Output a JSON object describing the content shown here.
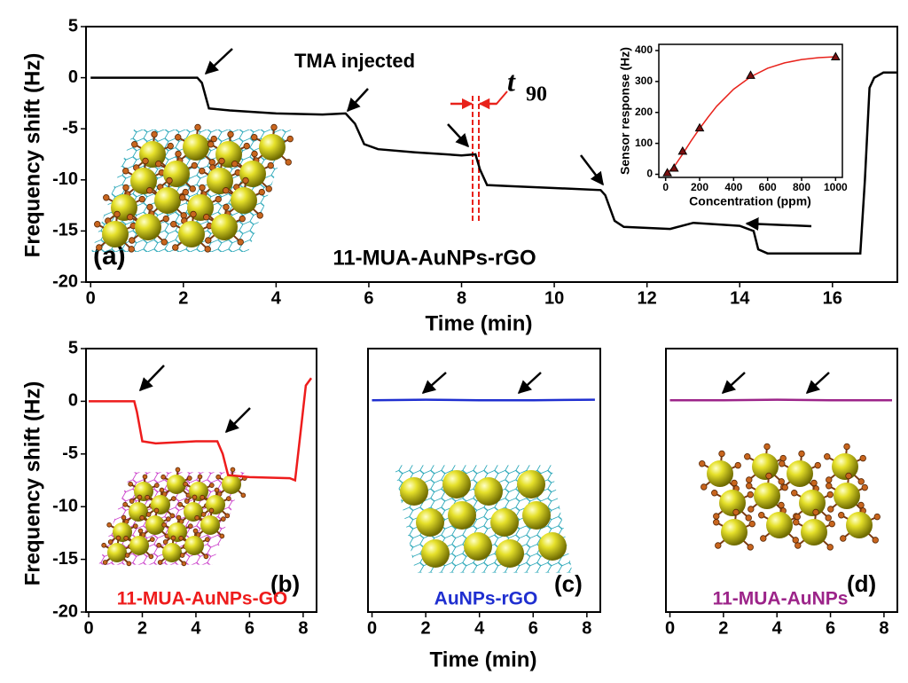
{
  "chart_data": [
    {
      "type": "line",
      "panel_label": "(a)",
      "sample_label": "11-MUA-AuNPs-rGO",
      "annotation": "TMA injected",
      "marker_label": {
        "symbol": "t",
        "subscript": "90"
      },
      "x_label": "Time (min)",
      "y_label": "Frequency shift (Hz)",
      "color": "#000000",
      "x": [
        0,
        1,
        2.3,
        2.4,
        2.55,
        3,
        4,
        5,
        5.5,
        5.7,
        5.9,
        6.2,
        7,
        8,
        8.3,
        8.4,
        8.55,
        9,
        10,
        11,
        11.1,
        11.3,
        11.5,
        12.5,
        13,
        14,
        14.3,
        14.4,
        14.6,
        16,
        16.6,
        16.7,
        16.8,
        16.9,
        17.1,
        17.4
      ],
      "values": [
        0,
        0,
        0,
        -0.5,
        -3,
        -3.2,
        -3.5,
        -3.6,
        -3.5,
        -4.5,
        -6.5,
        -7,
        -7.3,
        -7.6,
        -7.5,
        -9,
        -10.5,
        -10.6,
        -10.8,
        -11,
        -11.5,
        -14,
        -14.6,
        -14.8,
        -14.2,
        -14.5,
        -15,
        -16.8,
        -17.2,
        -17.2,
        -17.2,
        -10,
        -1,
        0,
        0.5,
        0.5
      ],
      "xlim": [
        -0.1,
        17.4
      ],
      "ylim": [
        -20,
        5
      ],
      "xticks": [
        0,
        2,
        4,
        6,
        8,
        10,
        12,
        14,
        16
      ],
      "yticks": [
        5,
        0,
        -5,
        -10,
        -15,
        -20
      ]
    },
    {
      "type": "scatter",
      "x_label": "Concentration (ppm)",
      "y_label": "Sensor response (Hz)",
      "color": "#000000",
      "x": [
        10,
        50,
        100,
        200,
        500,
        1000
      ],
      "values": [
        5,
        20,
        75,
        150,
        320,
        380
      ],
      "fit": {
        "color": "#e8221b",
        "x": [
          0,
          50,
          100,
          150,
          200,
          250,
          300,
          400,
          500,
          600,
          700,
          800,
          900,
          1000
        ],
        "values": [
          0,
          25,
          65,
          108,
          148,
          185,
          220,
          275,
          315,
          343,
          360,
          371,
          377,
          380
        ]
      },
      "xlim": [
        -40,
        1040
      ],
      "ylim": [
        -10,
        420
      ],
      "xticks": [
        0,
        200,
        400,
        600,
        800,
        1000
      ],
      "yticks": [
        0,
        100,
        200,
        300,
        400
      ]
    },
    {
      "type": "line",
      "panel_label": "(b)",
      "sample_label": "11-MUA-AuNPs-GO",
      "y_label": "Frequency shift (Hz)",
      "color": "#ee1c1c",
      "x": [
        0,
        1.7,
        1.8,
        2.0,
        2.5,
        4,
        4.8,
        5,
        5.2,
        6,
        7.5,
        7.7,
        7.9,
        8.1,
        8.3
      ],
      "values": [
        0,
        0,
        -1,
        -3.8,
        -4,
        -3.8,
        -3.8,
        -5,
        -7,
        -7.2,
        -7.3,
        -7.5,
        -3,
        1.5,
        2.2
      ],
      "xlim": [
        -0.1,
        8.5
      ],
      "ylim": [
        -20,
        5
      ],
      "xticks": [
        0,
        2,
        4,
        6,
        8
      ],
      "yticks": [
        5,
        0,
        -5,
        -10,
        -15,
        -20
      ]
    },
    {
      "type": "line",
      "panel_label": "(c)",
      "sample_label": "AuNPs-rGO",
      "x_label": "Time (min)",
      "color": "#1f2fd0",
      "x": [
        0,
        2,
        4,
        6,
        8.3
      ],
      "values": [
        0.1,
        0.15,
        0.1,
        0.1,
        0.15
      ],
      "xlim": [
        -0.15,
        8.5
      ],
      "ylim": [
        -20,
        5
      ],
      "xticks": [
        0,
        2,
        4,
        6,
        8
      ]
    },
    {
      "type": "line",
      "panel_label": "(d)",
      "sample_label": "11-MUA-AuNPs",
      "color": "#9c2489",
      "x": [
        0,
        2,
        4,
        6,
        8.3
      ],
      "values": [
        0.1,
        0.1,
        0.15,
        0.1,
        0.1
      ],
      "xlim": [
        -0.15,
        8.5
      ],
      "ylim": [
        -20,
        5
      ],
      "xticks": [
        0,
        2,
        4,
        6,
        8
      ]
    }
  ]
}
